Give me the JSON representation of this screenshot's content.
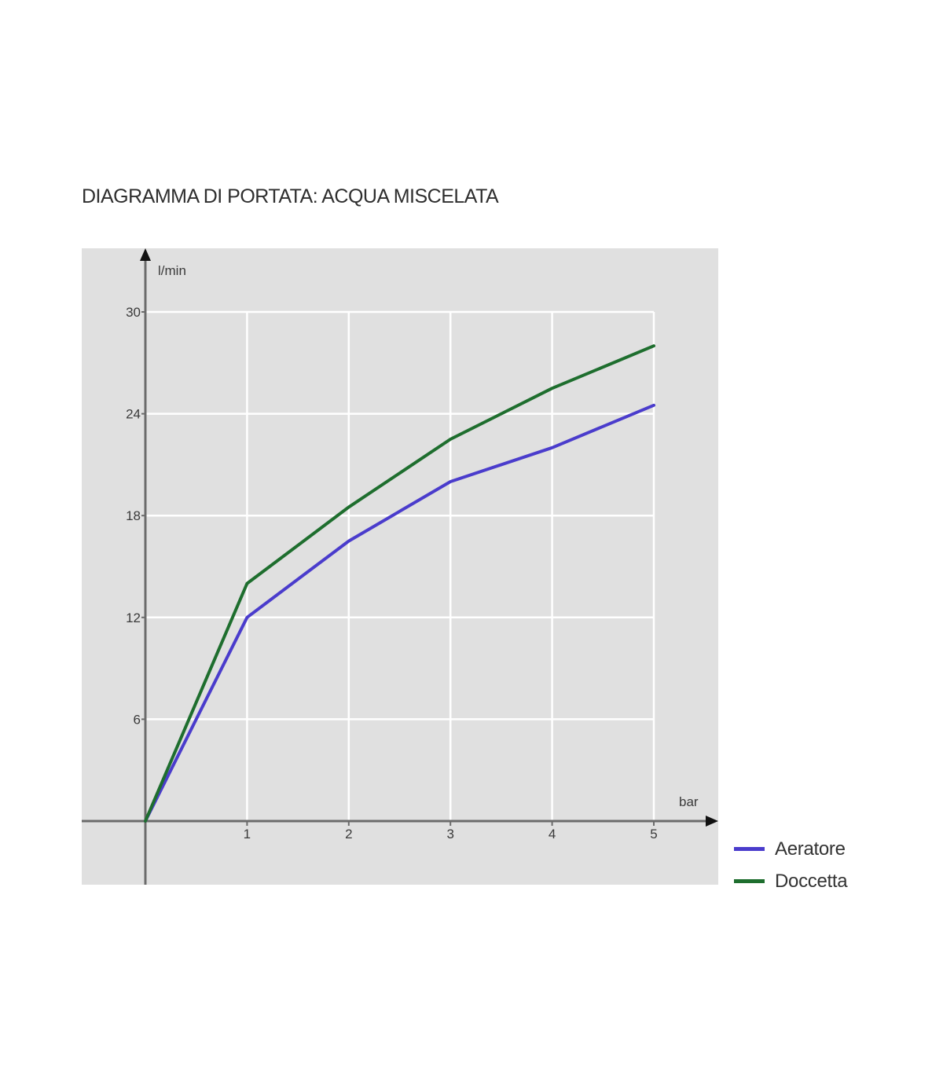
{
  "chart_data": {
    "type": "line",
    "title": "DIAGRAMMA DI PORTATA: ACQUA MISCELATA",
    "xlabel": "bar",
    "ylabel": "l/min",
    "xlim": [
      0,
      5
    ],
    "ylim": [
      0,
      30
    ],
    "x_ticks": [
      "1",
      "2",
      "3",
      "4",
      "5"
    ],
    "y_ticks": [
      "6",
      "12",
      "18",
      "24",
      "30"
    ],
    "grid": true,
    "legend_position": "bottom-right",
    "x": [
      0,
      1,
      2,
      3,
      4,
      5
    ],
    "series": [
      {
        "name": "Aeratore",
        "color": "#4a3ccc",
        "values": [
          0,
          12,
          16.5,
          20,
          22,
          24.5
        ]
      },
      {
        "name": "Doccetta",
        "color": "#1e6e2e",
        "values": [
          0,
          14,
          18.5,
          22.5,
          25.5,
          28
        ]
      }
    ],
    "background_color": "#e0e0e0"
  }
}
